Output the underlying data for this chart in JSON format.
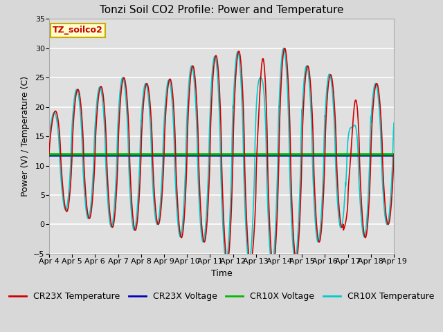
{
  "title": "Tonzi Soil CO2 Profile: Power and Temperature",
  "xlabel": "Time",
  "ylabel": "Power (V) / Temperature (C)",
  "ylim": [
    -5,
    35
  ],
  "yticks": [
    -5,
    0,
    5,
    10,
    15,
    20,
    25,
    30,
    35
  ],
  "xlim": [
    0,
    15
  ],
  "xtick_labels": [
    "Apr 4",
    "Apr 5",
    "Apr 6",
    "Apr 7",
    "Apr 8",
    "Apr 9",
    "Apr 10",
    "Apr 11",
    "Apr 12",
    "Apr 13",
    "Apr 14",
    "Apr 15",
    "Apr 16",
    "Apr 17",
    "Apr 18",
    "Apr 19"
  ],
  "cr23x_temp_color": "#cc0000",
  "cr23x_volt_color": "#0000bb",
  "cr10x_volt_color": "#00bb00",
  "cr10x_temp_color": "#00cccc",
  "cr23x_volt_level": 11.75,
  "cr10x_volt_level": 11.95,
  "fig_bg_color": "#d8d8d8",
  "plot_bg_color": "#e0e0e0",
  "grid_color": "#ffffff",
  "label_box_color": "#ffffcc",
  "label_box_edge": "#ccaa00",
  "label_text": "TZ_soilco2",
  "legend_labels": [
    "CR23X Temperature",
    "CR23X Voltage",
    "CR10X Voltage",
    "CR10X Temperature"
  ],
  "title_fontsize": 11,
  "label_fontsize": 9,
  "tick_fontsize": 8,
  "legend_fontsize": 9,
  "linewidth_temp": 1.2,
  "linewidth_volt": 2.5
}
